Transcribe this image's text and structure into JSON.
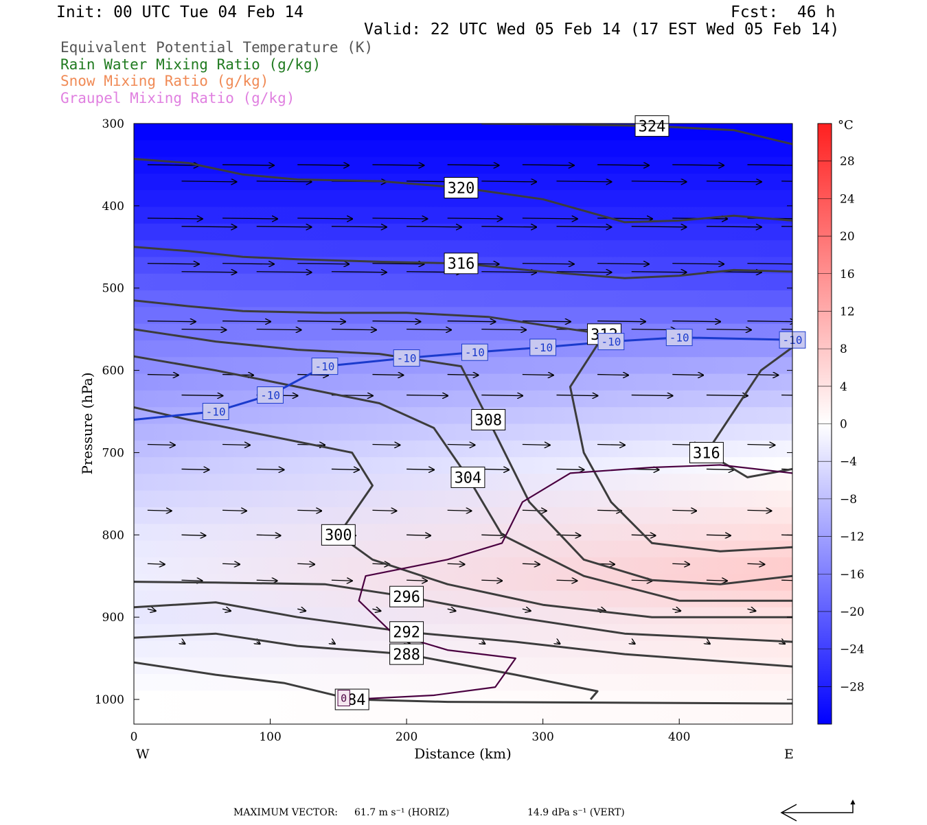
{
  "header": {
    "init": "Init: 00 UTC Tue 04 Feb 14",
    "fcst": "Fcst:  46 h",
    "valid": "Valid: 22 UTC Wed 05 Feb 14 (17 EST Wed 05 Feb 14)"
  },
  "legend": [
    {
      "text": "Equivalent Potential Temperature (K)",
      "color": "#555555"
    },
    {
      "text": "Rain Water Mixing Ratio (g/kg)",
      "color": "#1f7a1f"
    },
    {
      "text": "Snow Mixing Ratio (g/kg)",
      "color": "#f08a55"
    },
    {
      "text": "Graupel Mixing Ratio (g/kg)",
      "color": "#e080e0"
    }
  ],
  "footer": {
    "max_vector_label": "MAXIMUM VECTOR:",
    "horiz": "61.7 m s⁻¹ (HORIZ)",
    "vert": "14.9 dPa s⁻¹ (VERT)"
  },
  "chart_data": {
    "type": "heatmap",
    "title": "",
    "xlabel": "Distance (km)",
    "ylabel": "Pressure (hPa)",
    "x_range": [
      0,
      483
    ],
    "y_range": [
      1030,
      300
    ],
    "y_scale": "linear, inverted",
    "x_ticks": [
      0,
      100,
      200,
      300,
      400
    ],
    "y_ticks": [
      300,
      400,
      500,
      600,
      700,
      800,
      900,
      1000
    ],
    "x_end_labels": {
      "left": "W",
      "right": "E"
    },
    "colorbar": {
      "unit": "°C",
      "ticks": [
        28,
        24,
        20,
        16,
        12,
        8,
        4,
        0,
        -4,
        -8,
        -12,
        -16,
        -20,
        -24,
        -28
      ],
      "range": [
        -32,
        32
      ],
      "cold_color": "#0000ff",
      "warm_color": "#ff2020",
      "zero_color": "#ffffff"
    },
    "temperature_field_approx": [
      {
        "p": 300,
        "t_west": -32,
        "t_east": -32
      },
      {
        "p": 400,
        "t_west": -28,
        "t_east": -28
      },
      {
        "p": 500,
        "t_west": -20,
        "t_east": -22
      },
      {
        "p": 600,
        "t_west": -14,
        "t_east": -10
      },
      {
        "p": 700,
        "t_west": -8,
        "t_east": -1
      },
      {
        "p": 800,
        "t_west": -3,
        "t_east": 5
      },
      {
        "p": 850,
        "t_west": -2,
        "t_east": 8
      },
      {
        "p": 900,
        "t_west": -3,
        "t_east": 4
      },
      {
        "p": 1000,
        "t_west": 0,
        "t_east": 1
      }
    ],
    "theta_e_contours_K": [
      {
        "label": "324",
        "points": [
          [
            255,
            300
          ],
          [
            320,
            301
          ],
          [
            380,
            303
          ],
          [
            440,
            308
          ],
          [
            483,
            325
          ]
        ]
      },
      {
        "label": "320",
        "points": [
          [
            0,
            343
          ],
          [
            40,
            348
          ],
          [
            80,
            362
          ],
          [
            120,
            368
          ],
          [
            180,
            370
          ],
          [
            240,
            378
          ],
          [
            300,
            392
          ],
          [
            360,
            420
          ],
          [
            400,
            418
          ],
          [
            440,
            412
          ],
          [
            483,
            418
          ]
        ]
      },
      {
        "label": "316",
        "points": [
          [
            0,
            450
          ],
          [
            40,
            455
          ],
          [
            80,
            462
          ],
          [
            120,
            465
          ],
          [
            180,
            468
          ],
          [
            240,
            470
          ],
          [
            300,
            480
          ],
          [
            360,
            488
          ],
          [
            400,
            485
          ],
          [
            440,
            478
          ],
          [
            483,
            480
          ]
        ]
      },
      {
        "label": "312",
        "points": [
          [
            0,
            515
          ],
          [
            40,
            522
          ],
          [
            80,
            528
          ],
          [
            140,
            530
          ],
          [
            200,
            530
          ],
          [
            260,
            535
          ],
          [
            300,
            545
          ],
          [
            345,
            556
          ],
          [
            320,
            620
          ],
          [
            330,
            700
          ],
          [
            350,
            760
          ],
          [
            380,
            810
          ],
          [
            430,
            820
          ],
          [
            483,
            815
          ]
        ]
      },
      {
        "label": "316",
        "points": [
          [
            483,
            572
          ],
          [
            460,
            600
          ],
          [
            440,
            650
          ],
          [
            420,
            700
          ],
          [
            450,
            730
          ],
          [
            483,
            720
          ]
        ]
      },
      {
        "label": "308",
        "points": [
          [
            0,
            550
          ],
          [
            60,
            565
          ],
          [
            120,
            575
          ],
          [
            180,
            580
          ],
          [
            240,
            595
          ],
          [
            260,
            660
          ],
          [
            290,
            760
          ],
          [
            330,
            830
          ],
          [
            380,
            855
          ],
          [
            430,
            860
          ],
          [
            483,
            850
          ]
        ]
      },
      {
        "label": "304",
        "points": [
          [
            0,
            583
          ],
          [
            60,
            600
          ],
          [
            120,
            620
          ],
          [
            180,
            640
          ],
          [
            220,
            670
          ],
          [
            245,
            730
          ],
          [
            270,
            800
          ],
          [
            330,
            850
          ],
          [
            400,
            880
          ],
          [
            483,
            880
          ]
        ]
      },
      {
        "label": "300",
        "points": [
          [
            0,
            645
          ],
          [
            40,
            660
          ],
          [
            100,
            680
          ],
          [
            160,
            700
          ],
          [
            175,
            740
          ],
          [
            150,
            800
          ],
          [
            175,
            830
          ],
          [
            230,
            860
          ],
          [
            300,
            885
          ],
          [
            380,
            900
          ],
          [
            483,
            900
          ]
        ]
      },
      {
        "label": "296",
        "points": [
          [
            0,
            857
          ],
          [
            60,
            858
          ],
          [
            140,
            860
          ],
          [
            200,
            875
          ],
          [
            280,
            900
          ],
          [
            360,
            920
          ],
          [
            483,
            930
          ]
        ]
      },
      {
        "label": "292",
        "points": [
          [
            0,
            888
          ],
          [
            60,
            882
          ],
          [
            120,
            900
          ],
          [
            200,
            918
          ],
          [
            280,
            930
          ],
          [
            360,
            945
          ],
          [
            483,
            960
          ]
        ]
      },
      {
        "label": "288",
        "points": [
          [
            0,
            925
          ],
          [
            60,
            920
          ],
          [
            120,
            935
          ],
          [
            200,
            945
          ],
          [
            280,
            970
          ],
          [
            340,
            990
          ],
          [
            335,
            1000
          ]
        ]
      },
      {
        "label": "284",
        "points": [
          [
            0,
            955
          ],
          [
            60,
            970
          ],
          [
            110,
            980
          ],
          [
            160,
            1000
          ],
          [
            230,
            1003
          ],
          [
            483,
            1005
          ]
        ]
      }
    ],
    "temperature_contour_C": {
      "label": "-10",
      "points": [
        [
          0,
          660
        ],
        [
          60,
          650
        ],
        [
          100,
          630
        ],
        [
          140,
          595
        ],
        [
          200,
          585
        ],
        [
          250,
          578
        ],
        [
          300,
          572
        ],
        [
          350,
          565
        ],
        [
          400,
          560
        ],
        [
          483,
          563
        ]
      ]
    },
    "zero_isotherm_C": {
      "label": "0",
      "points": [
        [
          160,
          1000
        ],
        [
          220,
          995
        ],
        [
          265,
          985
        ],
        [
          280,
          950
        ],
        [
          230,
          940
        ],
        [
          190,
          920
        ],
        [
          165,
          880
        ],
        [
          170,
          850
        ],
        [
          230,
          830
        ],
        [
          270,
          810
        ],
        [
          285,
          760
        ],
        [
          320,
          725
        ],
        [
          380,
          718
        ],
        [
          430,
          715
        ],
        [
          483,
          725
        ]
      ]
    }
  }
}
